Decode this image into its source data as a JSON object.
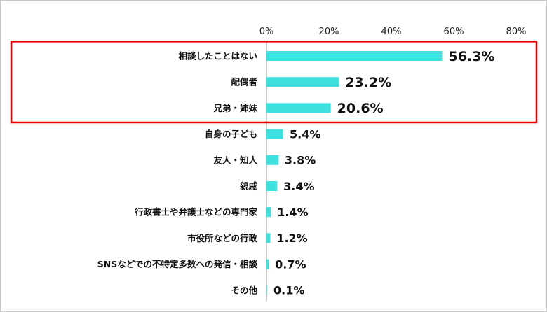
{
  "chart_data": {
    "type": "bar",
    "orientation": "horizontal",
    "categories": [
      "相談したことはない",
      "配偶者",
      "兄弟・姉妹",
      "自身の子ども",
      "友人・知人",
      "親戚",
      "行政書士や弁護士などの専門家",
      "市役所などの行政",
      "SNSなどでの不特定多数への発信・相談",
      "その他"
    ],
    "values": [
      56.3,
      23.2,
      20.6,
      5.4,
      3.8,
      3.4,
      1.4,
      1.2,
      0.7,
      0.1
    ],
    "value_labels": [
      "56.3%",
      "23.2%",
      "20.6%",
      "5.4%",
      "3.8%",
      "3.4%",
      "1.4%",
      "1.2%",
      "0.7%",
      "0.1%"
    ],
    "x_ticks": [
      "0%",
      "20%",
      "40%",
      "60%",
      "80%"
    ],
    "xlim": [
      0,
      80
    ],
    "grid": false,
    "bar_color": "#3ee0e0",
    "highlight": {
      "categories_highlighted": 3,
      "color": "#e60000"
    }
  }
}
